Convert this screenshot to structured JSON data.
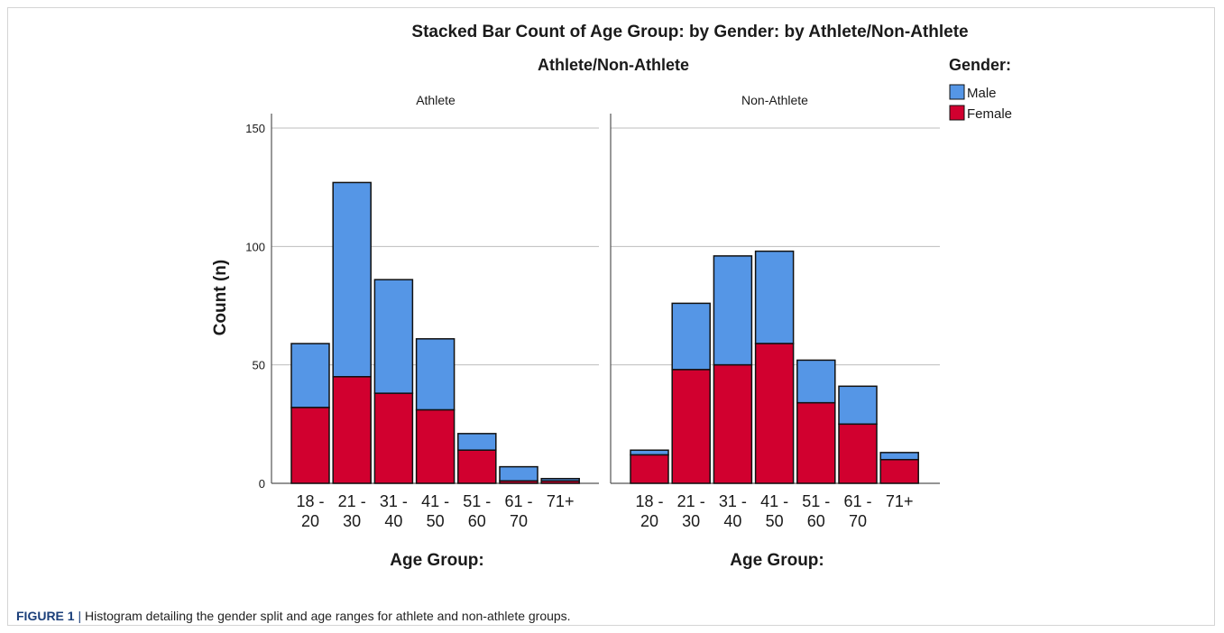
{
  "chart_data": {
    "type": "bar",
    "stacked": true,
    "title": "Stacked Bar Count of Age Group: by Gender: by Athlete/Non-Athlete",
    "panel_title": "Athlete/Non-Athlete",
    "xlabel": "Age Group:",
    "ylabel": "Count (n)",
    "ylim": [
      0,
      150
    ],
    "yticks": [
      0,
      50,
      100,
      150
    ],
    "categories": [
      [
        "18 -",
        "20"
      ],
      [
        "21 -",
        "30"
      ],
      [
        "31 -",
        "40"
      ],
      [
        "41 -",
        "50"
      ],
      [
        "51 -",
        "60"
      ],
      [
        "61 -",
        "70"
      ],
      [
        "71+",
        ""
      ]
    ],
    "legend": {
      "title": "Gender:",
      "placement": "top-right",
      "items": [
        {
          "name": "Male",
          "color": "#5596e6"
        },
        {
          "name": "Female",
          "color": "#d1002f"
        }
      ]
    },
    "panels": [
      {
        "name": "Athlete",
        "series": [
          {
            "name": "Female",
            "color": "#d1002f",
            "values": [
              32,
              45,
              38,
              31,
              14,
              1,
              1
            ]
          },
          {
            "name": "Male",
            "color": "#5596e6",
            "values": [
              27,
              82,
              48,
              30,
              7,
              6,
              1
            ]
          }
        ],
        "totals": [
          59,
          127,
          86,
          61,
          21,
          7,
          2
        ]
      },
      {
        "name": "Non-Athlete",
        "series": [
          {
            "name": "Female",
            "color": "#d1002f",
            "values": [
              12,
              48,
              50,
              59,
              34,
              25,
              10
            ]
          },
          {
            "name": "Male",
            "color": "#5596e6",
            "values": [
              2,
              28,
              46,
              39,
              18,
              16,
              3
            ]
          }
        ],
        "totals": [
          14,
          76,
          96,
          98,
          52,
          41,
          13
        ]
      }
    ],
    "grid": true
  },
  "caption": {
    "label": "FIGURE 1",
    "separator": "|",
    "text": " Histogram detailing the gender split and age ranges for athlete and non-athlete groups."
  }
}
